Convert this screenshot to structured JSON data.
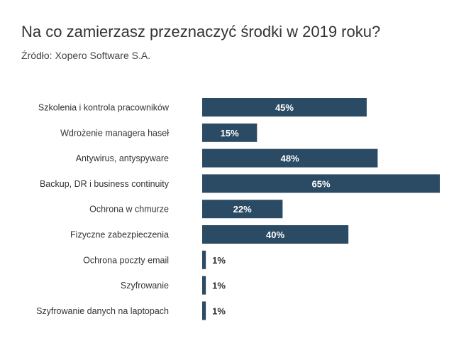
{
  "chart_data": {
    "type": "bar",
    "orientation": "horizontal",
    "title": "Na co zamierzasz przeznaczyć środki w 2019 roku?",
    "subtitle": "Źródło: Xopero Software S.A.",
    "xlabel": "",
    "ylabel": "",
    "xlim": [
      0,
      65
    ],
    "grid": false,
    "legend": "none",
    "bar_color": "#2b4a63",
    "categories": [
      "Szkolenia i kontrola pracowników",
      "Wdrożenie managera haseł",
      "Antywirus, antyspyware",
      "Backup, DR i business continuity",
      "Ochrona w chmurze",
      "Fizyczne zabezpieczenia",
      "Ochrona poczty email",
      "Szyfrowanie",
      "Szyfrowanie danych na laptopach"
    ],
    "values": [
      45,
      15,
      48,
      65,
      22,
      40,
      1,
      1,
      1
    ],
    "data_labels": [
      "45%",
      "15%",
      "48%",
      "65%",
      "22%",
      "40%",
      "1%",
      "1%",
      "1%"
    ]
  }
}
